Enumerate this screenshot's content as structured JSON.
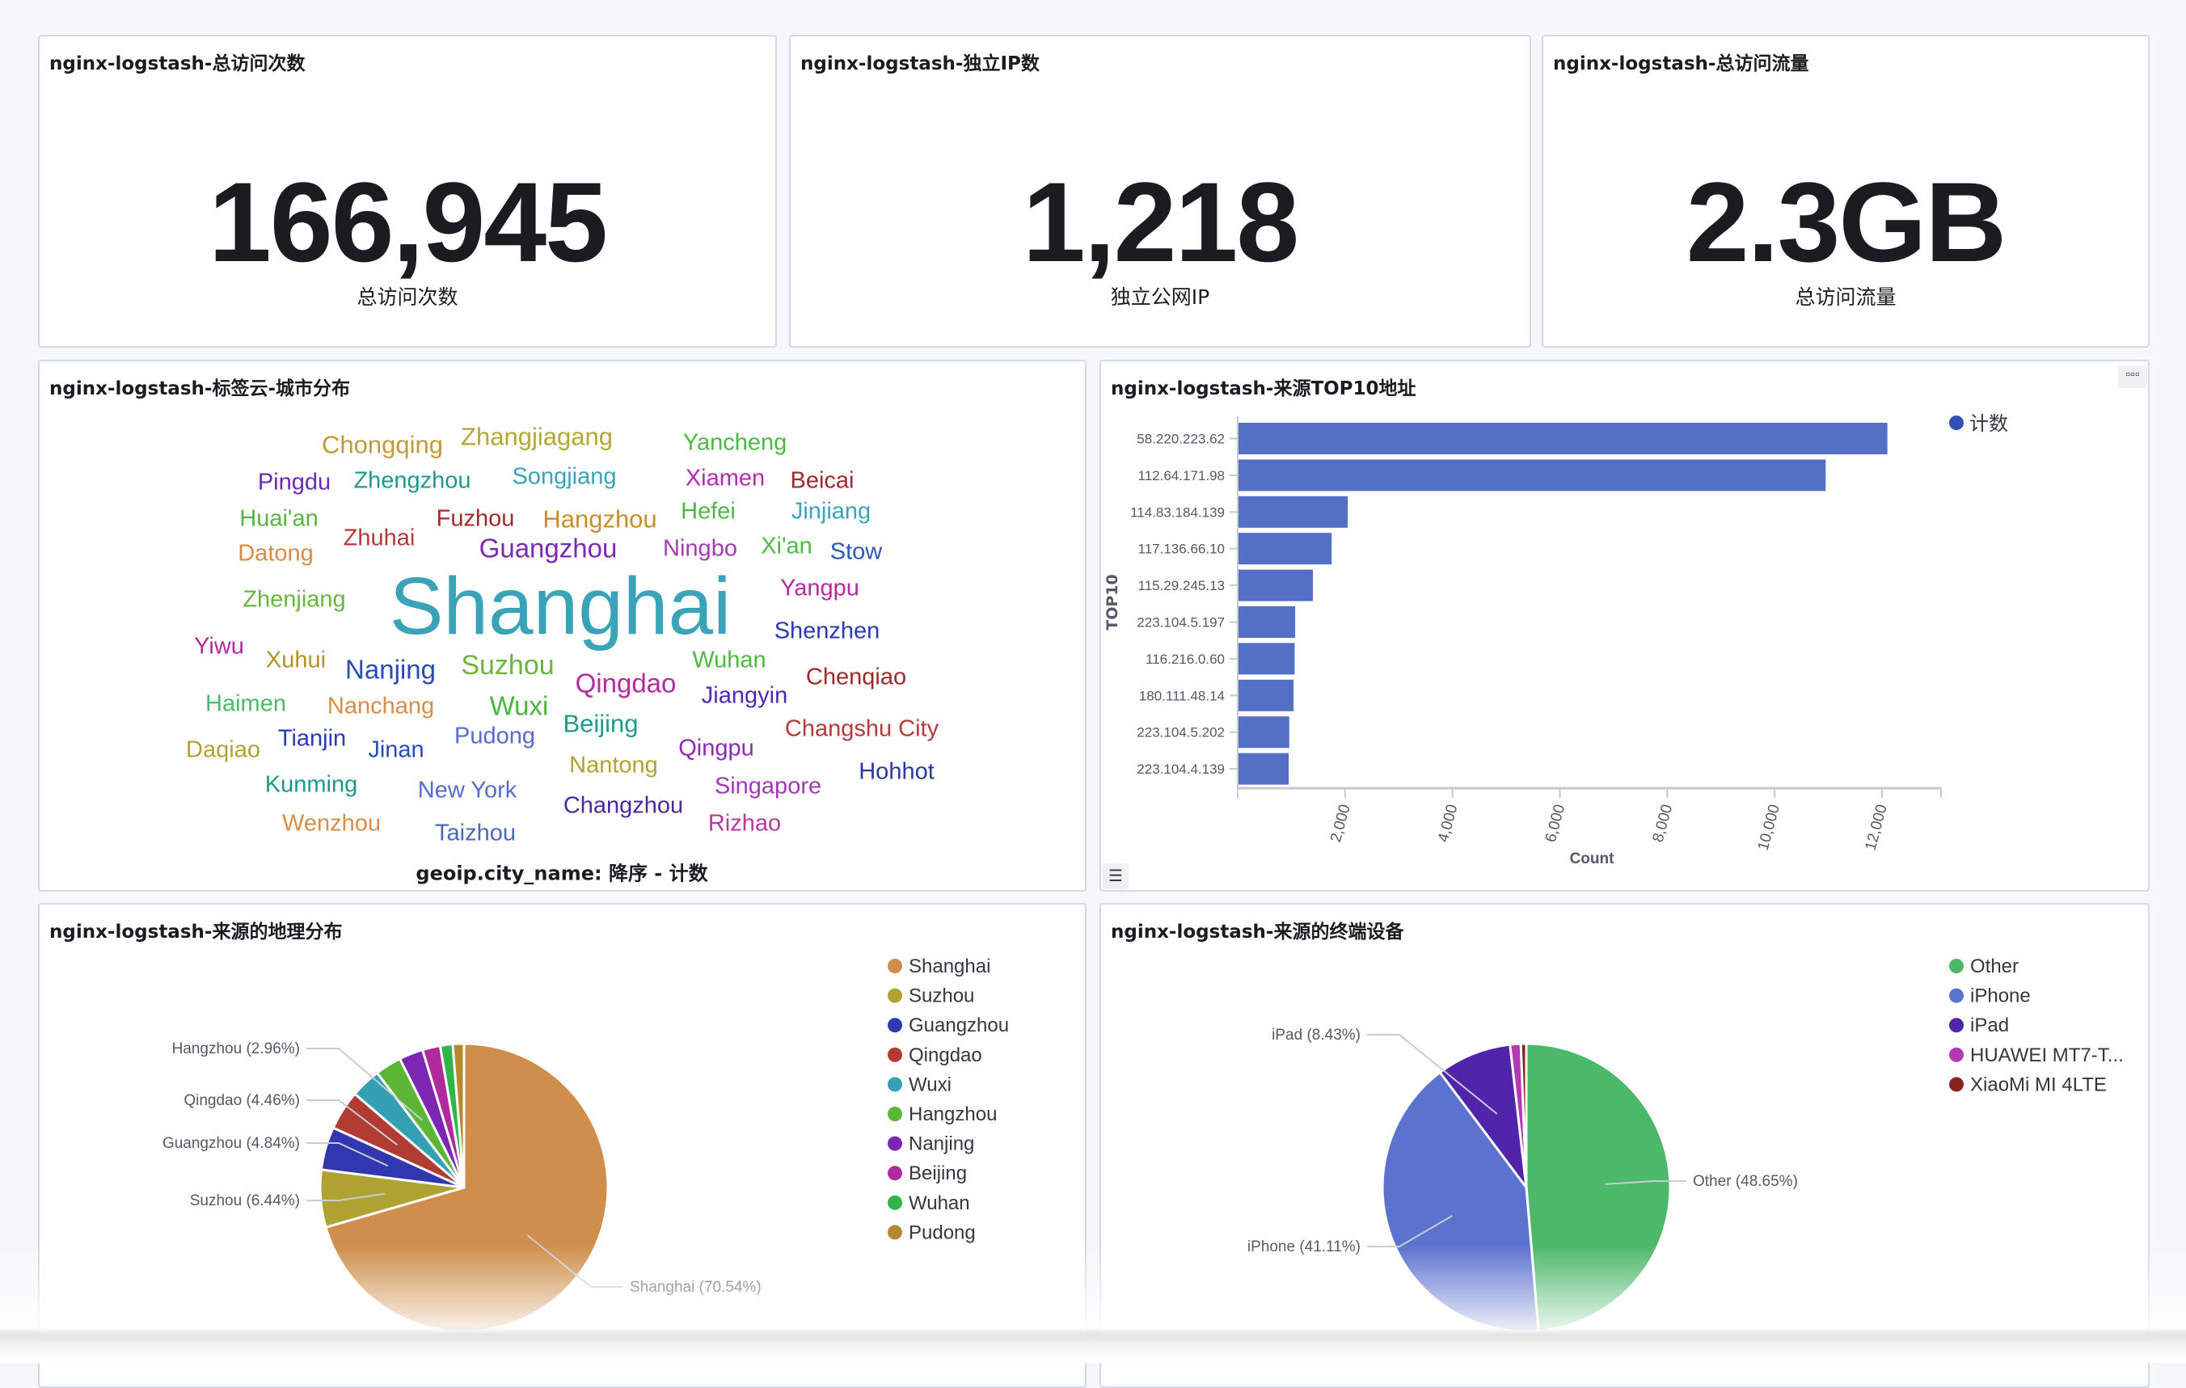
{
  "metrics": [
    {
      "title": "nginx-logstash-总访问次数",
      "value": "166,945",
      "label": "总访问次数"
    },
    {
      "title": "nginx-logstash-独立IP数",
      "value": "1,218",
      "label": "独立公网IP"
    },
    {
      "title": "nginx-logstash-总访问流量",
      "value": "2.3GB",
      "label": "总访问流量"
    }
  ],
  "wordcloud": {
    "title": "nginx-logstash-标签云-城市分布",
    "caption": "geoip.city_name: 降序 - 计数",
    "words": [
      {
        "text": "Chongqing",
        "color": "#c39a3a"
      },
      {
        "text": "Zhangjiagang",
        "color": "#b5a832"
      },
      {
        "text": "Yancheng",
        "color": "#4cb944"
      },
      {
        "text": "Pingdu",
        "color": "#6a2ab5"
      },
      {
        "text": "Zhengzhou",
        "color": "#1e9a8a"
      },
      {
        "text": "Songjiang",
        "color": "#3aa3b8"
      },
      {
        "text": "Xiamen",
        "color": "#b52ab0"
      },
      {
        "text": "Beicai",
        "color": "#9c2a2a"
      },
      {
        "text": "Huai'an",
        "color": "#5ab540"
      },
      {
        "text": "Fuzhou",
        "color": "#a32a2a"
      },
      {
        "text": "Hangzhou",
        "color": "#c3902a"
      },
      {
        "text": "Hefei",
        "color": "#4cb944"
      },
      {
        "text": "Jinjiang",
        "color": "#3aa3b8"
      },
      {
        "text": "Zhuhai",
        "color": "#b53a3a"
      },
      {
        "text": "Datong",
        "color": "#d98c4a"
      },
      {
        "text": "Guangzhou",
        "color": "#7a2ab5"
      },
      {
        "text": "Ningbo",
        "color": "#a33ab5"
      },
      {
        "text": "Xi'an",
        "color": "#4cb944"
      },
      {
        "text": "Stow",
        "color": "#2a5ab5"
      },
      {
        "text": "Shanghai",
        "color": "#3aa3b8"
      },
      {
        "text": "Yangpu",
        "color": "#b52a9c"
      },
      {
        "text": "Zhenjiang",
        "color": "#6ab540"
      },
      {
        "text": "Shenzhen",
        "color": "#2a3ab5"
      },
      {
        "text": "Yiwu",
        "color": "#b52a9c"
      },
      {
        "text": "Xuhui",
        "color": "#b88f2a"
      },
      {
        "text": "Nanjing",
        "color": "#2a4ab5"
      },
      {
        "text": "Suzhou",
        "color": "#6ab540"
      },
      {
        "text": "Wuhan",
        "color": "#4cb944"
      },
      {
        "text": "Qingdao",
        "color": "#b52a9c"
      },
      {
        "text": "Chenqiao",
        "color": "#9c2a2a"
      },
      {
        "text": "Jiangyin",
        "color": "#4a2ab5"
      },
      {
        "text": "Haimen",
        "color": "#4cb96a"
      },
      {
        "text": "Nanchang",
        "color": "#d98c4a"
      },
      {
        "text": "Wuxi",
        "color": "#4ab540"
      },
      {
        "text": "Beijing",
        "color": "#1e9a8a"
      },
      {
        "text": "Changshu City",
        "color": "#b53a3a"
      },
      {
        "text": "Daqiao",
        "color": "#b5a032"
      },
      {
        "text": "Tianjin",
        "color": "#2a3ab5"
      },
      {
        "text": "Jinan",
        "color": "#2a4ab5"
      },
      {
        "text": "Pudong",
        "color": "#5a6ad4"
      },
      {
        "text": "Qingpu",
        "color": "#8a2ab5"
      },
      {
        "text": "Nantong",
        "color": "#b5a032"
      },
      {
        "text": "Kunming",
        "color": "#1e9a8a"
      },
      {
        "text": "New York",
        "color": "#5a6ad4"
      },
      {
        "text": "Singapore",
        "color": "#a33ab5"
      },
      {
        "text": "Hohhot",
        "color": "#2a3a9c"
      },
      {
        "text": "Changzhou",
        "color": "#4a2a9c"
      },
      {
        "text": "Wenzhou",
        "color": "#d98c4a"
      },
      {
        "text": "Taizhou",
        "color": "#4a6ab5"
      },
      {
        "text": "Rizhao",
        "color": "#b53a9c"
      }
    ]
  },
  "panels": {
    "bar_title": "nginx-logstash-来源TOP10地址",
    "geo_title": "nginx-logstash-来源的地理分布",
    "device_title": "nginx-logstash-来源的终端设备",
    "menu_icon": "ellipsis-icon",
    "list_icon": "list-icon"
  },
  "chart_data": [
    {
      "type": "bar",
      "orientation": "horizontal",
      "title": "nginx-logstash-来源TOP10地址",
      "ylabel": "TOP10",
      "xlabel": "Count",
      "legend": [
        {
          "name": "计数",
          "color": "#5470c6"
        }
      ],
      "legend_position": "top-right",
      "categories": [
        "58.220.223.62",
        "112.64.171.98",
        "114.83.184.139",
        "117.136.66.10",
        "115.29.245.13",
        "223.104.5.197",
        "116.216.0.60",
        "180.111.48.14",
        "223.104.5.202",
        "223.104.4.139"
      ],
      "values": [
        12100,
        10950,
        2050,
        1750,
        1400,
        1070,
        1060,
        1040,
        960,
        950
      ],
      "xticks": [
        "2,000",
        "4,000",
        "6,000",
        "8,000",
        "10,000",
        "12,000"
      ],
      "xtick_values": [
        2000,
        4000,
        6000,
        8000,
        10000,
        12000
      ],
      "xlim": [
        0,
        13000
      ],
      "bar_color": "#5470c6"
    },
    {
      "type": "pie",
      "title": "nginx-logstash-来源的地理分布",
      "legend_position": "top-right",
      "slices": [
        {
          "name": "Shanghai",
          "value": 70.54,
          "color": "#cf8e4b",
          "label": "Shanghai (70.54%)"
        },
        {
          "name": "Suzhou",
          "value": 6.44,
          "color": "#b0a232",
          "label": "Suzhou (6.44%)"
        },
        {
          "name": "Guangzhou",
          "value": 4.84,
          "color": "#3137b0",
          "label": "Guangzhou (4.84%)"
        },
        {
          "name": "Qingdao",
          "value": 4.46,
          "color": "#b23c34",
          "label": "Qingdao (4.46%)"
        },
        {
          "name": "Wuxi",
          "value": 3.4,
          "color": "#34a0b4",
          "label": null
        },
        {
          "name": "Hangzhou",
          "value": 2.96,
          "color": "#5cb635",
          "label": "Hangzhou (2.96%)"
        },
        {
          "name": "Nanjing",
          "value": 2.7,
          "color": "#7b27b3",
          "label": null
        },
        {
          "name": "Beijing",
          "value": 2.0,
          "color": "#b02a9e",
          "label": null
        },
        {
          "name": "Wuhan",
          "value": 1.4,
          "color": "#2fb549",
          "label": null
        },
        {
          "name": "Pudong",
          "value": 1.26,
          "color": "#b5892f",
          "label": null
        }
      ]
    },
    {
      "type": "pie",
      "title": "nginx-logstash-来源的终端设备",
      "legend_position": "top-right",
      "slices": [
        {
          "name": "Other",
          "value": 48.65,
          "color": "#4cb86a",
          "label": "Other (48.65%)"
        },
        {
          "name": "iPhone",
          "value": 41.11,
          "color": "#5c72cf",
          "label": "iPhone (41.11%)"
        },
        {
          "name": "iPad",
          "value": 8.43,
          "color": "#5025ac",
          "label": "iPad (8.43%)"
        },
        {
          "name": "HUAWEI MT7-T...",
          "value": 1.2,
          "color": "#b43ab5",
          "label": null
        },
        {
          "name": "XiaoMi MI 4LTE",
          "value": 0.61,
          "color": "#8b2222",
          "label": null
        }
      ]
    }
  ]
}
